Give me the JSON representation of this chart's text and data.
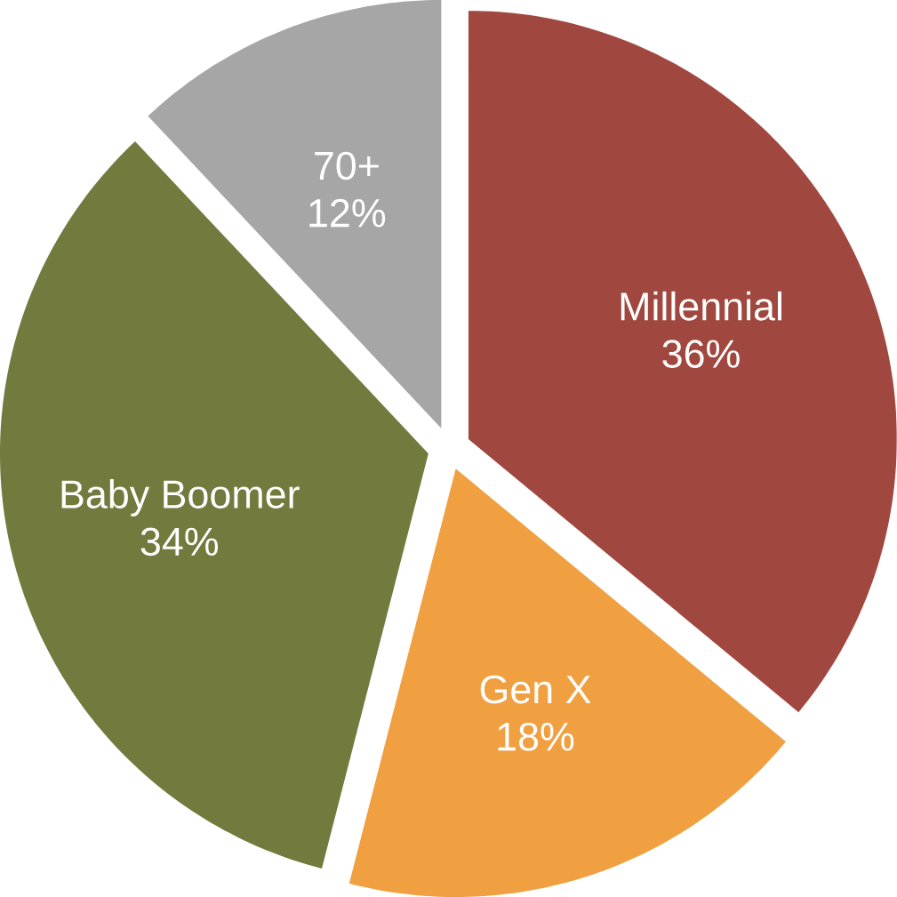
{
  "chart_data": {
    "type": "pie",
    "categories": [
      "Millennial",
      "Gen X",
      "Baby Boomer",
      "70+"
    ],
    "values": [
      36,
      18,
      34,
      12
    ],
    "value_labels": [
      "36%",
      "18%",
      "34%",
      "12%"
    ],
    "colors": [
      "#a0483f",
      "#f0a040",
      "#737a3e",
      "#a6a6a6"
    ]
  }
}
